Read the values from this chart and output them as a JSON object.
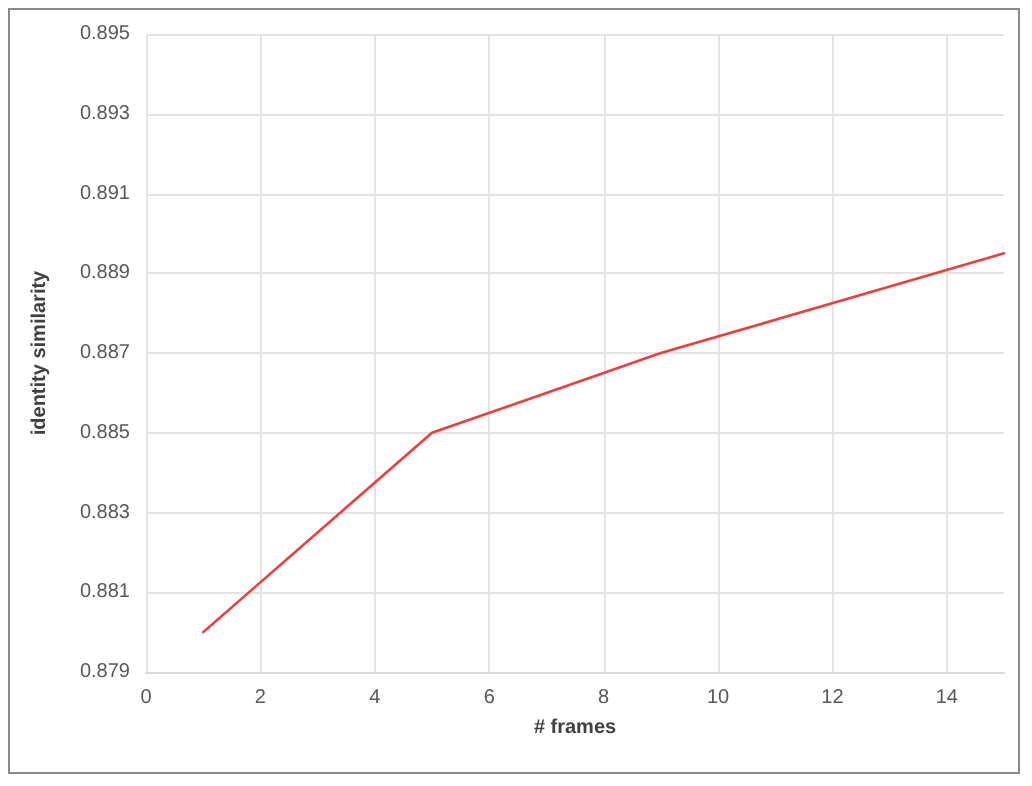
{
  "chart_data": {
    "type": "line",
    "xlabel": "# frames",
    "ylabel": "identity similarity",
    "x": [
      1,
      5,
      9,
      15
    ],
    "series": [
      {
        "color": "#f03c3c",
        "values": [
          0.88,
          0.885,
          0.887,
          0.8895
        ]
      }
    ],
    "xlim": [
      0,
      15
    ],
    "xticks": [
      0,
      2,
      4,
      6,
      8,
      10,
      12,
      14
    ],
    "ylim": [
      0.879,
      0.895
    ],
    "yticks": [
      0.879,
      0.881,
      0.883,
      0.885,
      0.887,
      0.889,
      0.891,
      0.893,
      0.895
    ],
    "grid": true,
    "marker": "none",
    "line_style": "solid"
  }
}
